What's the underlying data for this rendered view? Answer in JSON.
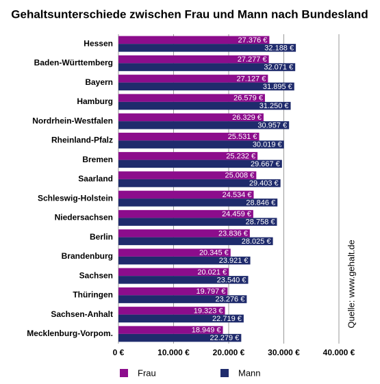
{
  "chart_data": {
    "type": "bar",
    "orientation": "horizontal",
    "title": "Gehaltsunterschiede zwischen Frau und Mann nach Bundesland",
    "annotation": "Quelle: www.gehalt.de",
    "categories": [
      "Hessen",
      "Baden-Württemberg",
      "Bayern",
      "Hamburg",
      "Nordrhein-Westfalen",
      "Rheinland-Pfalz",
      "Bremen",
      "Saarland",
      "Schleswig-Holstein",
      "Niedersachsen",
      "Berlin",
      "Brandenburg",
      "Sachsen",
      "Thüringen",
      "Sachsen-Anhalt",
      "Mecklenburg-Vorpom."
    ],
    "series": [
      {
        "name": "Frau",
        "color": "#8c0d8c",
        "values": [
          27376,
          27277,
          27127,
          26579,
          26329,
          25531,
          25232,
          25008,
          24534,
          24459,
          23836,
          20345,
          20021,
          19797,
          19323,
          18949
        ],
        "value_labels": [
          "27.376 €",
          "27.277 €",
          "27.127 €",
          "26.579 €",
          "26.329 €",
          "25.531 €",
          "25.232 €",
          "25.008 €",
          "24.534 €",
          "24.459 €",
          "23.836 €",
          "20.345 €",
          "20.021 €",
          "19.797 €",
          "19.323 €",
          "18.949 €"
        ]
      },
      {
        "name": "Mann",
        "color": "#1f2b6c",
        "values": [
          32188,
          32071,
          31895,
          31250,
          30957,
          30019,
          29667,
          29403,
          28846,
          28758,
          28025,
          23921,
          23540,
          23276,
          22719,
          22279
        ],
        "value_labels": [
          "32.188 €",
          "32.071 €",
          "31.895 €",
          "31.250 €",
          "30.957 €",
          "30.019 €",
          "29.667 €",
          "29.403 €",
          "28.846 €",
          "28.758 €",
          "28.025 €",
          "23.921 €",
          "23.540 €",
          "23.276 €",
          "22.719 €",
          "22.279 €"
        ]
      }
    ],
    "xlim": [
      0,
      40000
    ],
    "xticks": [
      {
        "value": 0,
        "label": "0 €"
      },
      {
        "value": 10000,
        "label": "10.000 €"
      },
      {
        "value": 20000,
        "label": "20.000 €"
      },
      {
        "value": 30000,
        "label": "30.000 €"
      },
      {
        "value": 40000,
        "label": "40.000 €"
      }
    ],
    "grid": true,
    "legend": "bottom"
  }
}
